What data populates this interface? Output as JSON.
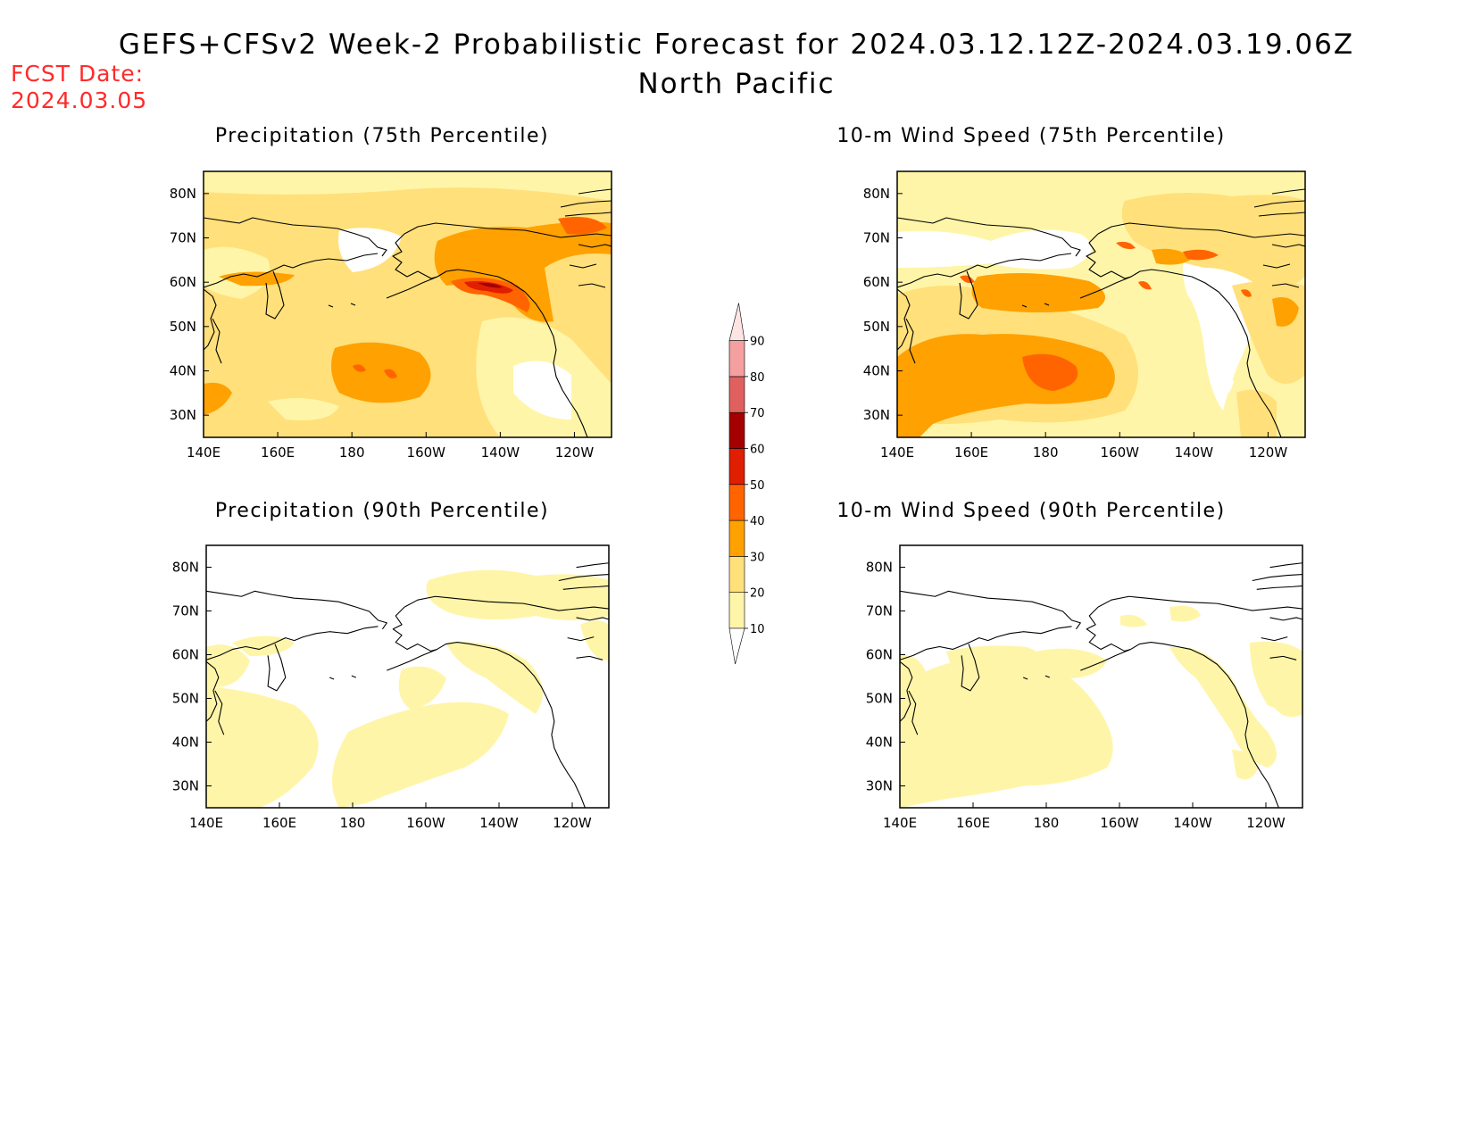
{
  "header": {
    "title": "GEFS+CFSv2 Week-2 Probabilistic Forecast for 2024.03.12.12Z-2024.03.19.06Z",
    "region": "North Pacific",
    "fcst_label": "FCST Date:",
    "fcst_date": "2024.03.05"
  },
  "colors": {
    "bins": [
      "#ffffff",
      "#fff5a8",
      "#ffe07a",
      "#ffa100",
      "#ff6400",
      "#e01e00",
      "#a50000",
      "#e06060",
      "#f4a0a0",
      "#ffe4e4"
    ],
    "coastline": "#000000",
    "fcst_text": "#ff2a2a"
  },
  "colorbar": {
    "levels": [
      "10",
      "20",
      "30",
      "40",
      "50",
      "60",
      "70",
      "80",
      "90"
    ]
  },
  "axes": {
    "x_ticks": [
      "140E",
      "160E",
      "180",
      "160W",
      "140W",
      "120W"
    ],
    "y_ticks": [
      "30N",
      "40N",
      "50N",
      "60N",
      "70N",
      "80N"
    ]
  },
  "panels": [
    {
      "id": "precip75",
      "title": "Precipitation (75th Percentile)"
    },
    {
      "id": "wind75",
      "title": "10-m Wind Speed (75th Percentile)"
    },
    {
      "id": "precip90",
      "title": "Precipitation (90th Percentile)"
    },
    {
      "id": "wind90",
      "title": "10-m Wind Speed (90th Percentile)"
    }
  ]
}
